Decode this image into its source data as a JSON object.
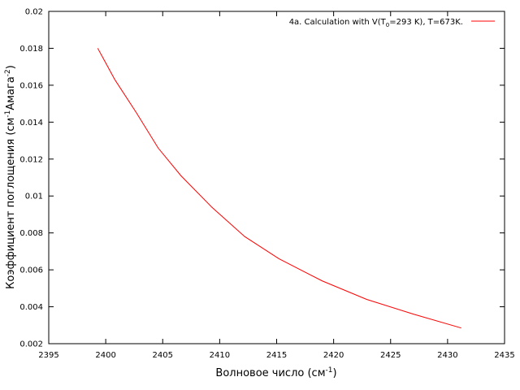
{
  "chart_data": {
    "type": "line",
    "xlabel": {
      "main": "Волновое число (см",
      "sup": "-1",
      "end": ")"
    },
    "ylabel": {
      "main": "Коэффициент поглощения (см",
      "sup1": "-1",
      "mid": "Амага",
      "sup2": "-2",
      "end": ")"
    },
    "xlim": [
      2395,
      2435
    ],
    "ylim": [
      0.002,
      0.02
    ],
    "x_ticks": [
      "2395",
      "2400",
      "2405",
      "2410",
      "2415",
      "2420",
      "2425",
      "2430",
      "2435"
    ],
    "y_ticks": [
      "0.002",
      "0.004",
      "0.006",
      "0.008",
      "0.01",
      "0.012",
      "0.014",
      "0.016",
      "0.018",
      "0.02"
    ],
    "grid": false,
    "legend_position": "top-right",
    "series": [
      {
        "name": {
          "pre": "4a. Calculation with V(T",
          "sub": "0",
          "post": "=293 K), T=673K."
        },
        "color": "#ff0000",
        "x": [
          2399.3,
          2400.8,
          2402.7,
          2404.6,
          2406.6,
          2409.3,
          2412.2,
          2415.2,
          2419.0,
          2422.9,
          2427.0,
          2431.2
        ],
        "y": [
          0.018,
          0.0163,
          0.0145,
          0.0126,
          0.0111,
          0.0094,
          0.0078,
          0.0066,
          0.0054,
          0.0044,
          0.0036,
          0.00285
        ]
      }
    ]
  }
}
